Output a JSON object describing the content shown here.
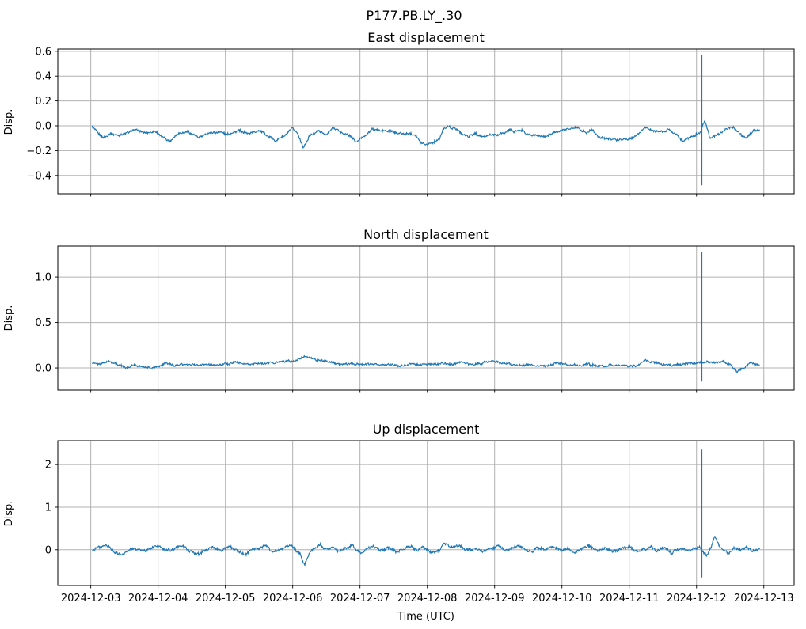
{
  "chart_data": {
    "type": "line",
    "title": "P177.PB.LY_.30",
    "xlabel": "Time (UTC)",
    "legend": "none",
    "grid": true,
    "line_color": "#1f77b4",
    "grid_color": "#b0b0b0",
    "axis_color": "#000000",
    "x_tick_labels": [
      "2024-12-03",
      "2024-12-04",
      "2024-12-05",
      "2024-12-06",
      "2024-12-07",
      "2024-12-08",
      "2024-12-09",
      "2024-12-10",
      "2024-12-11",
      "2024-12-12",
      "2024-12-13"
    ],
    "x_tick_positions_days": [
      0,
      1,
      2,
      3,
      4,
      5,
      6,
      7,
      8,
      9,
      10
    ],
    "x_range_days": [
      -0.49,
      10.45
    ],
    "data_span_days": [
      0.02,
      9.94
    ],
    "subplots": [
      {
        "name": "east",
        "title": "East displacement",
        "ylabel": "Disp.",
        "ylim": [
          -0.548,
          0.618
        ],
        "yticks": [
          -0.4,
          -0.2,
          0.0,
          0.2,
          0.4,
          0.6
        ],
        "ytick_labels": [
          "−0.4",
          "−0.2",
          "0.0",
          "0.2",
          "0.4",
          "0.6"
        ],
        "noise_amp": 0.013,
        "spike": {
          "day": 9.08,
          "high": 0.57,
          "low": -0.48
        },
        "anchors": [
          [
            0.02,
            0.0
          ],
          [
            0.08,
            -0.04
          ],
          [
            0.18,
            -0.1
          ],
          [
            0.3,
            -0.06
          ],
          [
            0.42,
            -0.08
          ],
          [
            0.55,
            -0.05
          ],
          [
            0.68,
            -0.03
          ],
          [
            0.8,
            -0.06
          ],
          [
            0.95,
            -0.04
          ],
          [
            1.06,
            -0.09
          ],
          [
            1.18,
            -0.12
          ],
          [
            1.3,
            -0.06
          ],
          [
            1.45,
            -0.05
          ],
          [
            1.6,
            -0.1
          ],
          [
            1.75,
            -0.06
          ],
          [
            1.9,
            -0.05
          ],
          [
            2.05,
            -0.07
          ],
          [
            2.2,
            -0.04
          ],
          [
            2.35,
            -0.06
          ],
          [
            2.5,
            -0.04
          ],
          [
            2.62,
            -0.08
          ],
          [
            2.75,
            -0.12
          ],
          [
            2.88,
            -0.08
          ],
          [
            3.0,
            -0.02
          ],
          [
            3.08,
            -0.07
          ],
          [
            3.16,
            -0.18
          ],
          [
            3.25,
            -0.08
          ],
          [
            3.38,
            -0.04
          ],
          [
            3.5,
            -0.07
          ],
          [
            3.6,
            -0.02
          ],
          [
            3.72,
            -0.05
          ],
          [
            3.85,
            -0.08
          ],
          [
            3.95,
            -0.13
          ],
          [
            4.05,
            -0.09
          ],
          [
            4.18,
            -0.03
          ],
          [
            4.32,
            -0.04
          ],
          [
            4.45,
            -0.04
          ],
          [
            4.58,
            -0.06
          ],
          [
            4.7,
            -0.06
          ],
          [
            4.82,
            -0.07
          ],
          [
            4.9,
            -0.13
          ],
          [
            5.0,
            -0.15
          ],
          [
            5.1,
            -0.13
          ],
          [
            5.18,
            -0.11
          ],
          [
            5.24,
            -0.02
          ],
          [
            5.32,
            -0.01
          ],
          [
            5.42,
            -0.02
          ],
          [
            5.52,
            -0.07
          ],
          [
            5.62,
            -0.08
          ],
          [
            5.72,
            -0.06
          ],
          [
            5.82,
            -0.09
          ],
          [
            5.94,
            -0.07
          ],
          [
            6.02,
            -0.08
          ],
          [
            6.12,
            -0.06
          ],
          [
            6.24,
            -0.03
          ],
          [
            6.29,
            -0.05
          ],
          [
            6.35,
            -0.04
          ],
          [
            6.41,
            -0.04
          ],
          [
            6.47,
            -0.06
          ],
          [
            6.53,
            -0.07
          ],
          [
            6.65,
            -0.08
          ],
          [
            6.76,
            -0.09
          ],
          [
            6.88,
            -0.05
          ],
          [
            7.0,
            -0.04
          ],
          [
            7.06,
            -0.03
          ],
          [
            7.24,
            -0.01
          ],
          [
            7.35,
            -0.06
          ],
          [
            7.45,
            -0.02
          ],
          [
            7.53,
            -0.09
          ],
          [
            7.65,
            -0.1
          ],
          [
            7.8,
            -0.11
          ],
          [
            7.94,
            -0.11
          ],
          [
            8.06,
            -0.1
          ],
          [
            8.24,
            -0.01
          ],
          [
            8.35,
            -0.04
          ],
          [
            8.51,
            -0.05
          ],
          [
            8.59,
            -0.03
          ],
          [
            8.71,
            -0.07
          ],
          [
            8.79,
            -0.12
          ],
          [
            8.88,
            -0.1
          ],
          [
            9.0,
            -0.07
          ],
          [
            9.06,
            -0.05
          ],
          [
            9.12,
            0.04
          ],
          [
            9.2,
            -0.1
          ],
          [
            9.3,
            -0.08
          ],
          [
            9.42,
            -0.03
          ],
          [
            9.55,
            -0.01
          ],
          [
            9.65,
            -0.07
          ],
          [
            9.75,
            -0.1
          ],
          [
            9.85,
            -0.03
          ],
          [
            9.94,
            -0.04
          ]
        ]
      },
      {
        "name": "north",
        "title": "North displacement",
        "ylabel": "Disp.",
        "ylim": [
          -0.243,
          1.34
        ],
        "yticks": [
          0.0,
          0.5,
          1.0
        ],
        "ytick_labels": [
          "0.0",
          "0.5",
          "1.0"
        ],
        "noise_amp": 0.017,
        "spike": {
          "day": 9.08,
          "high": 1.27,
          "low": -0.15
        },
        "anchors": [
          [
            0.02,
            0.06
          ],
          [
            0.12,
            0.04
          ],
          [
            0.25,
            0.07
          ],
          [
            0.38,
            0.05
          ],
          [
            0.52,
            0.0
          ],
          [
            0.62,
            0.03
          ],
          [
            0.75,
            0.02
          ],
          [
            0.88,
            0.0
          ],
          [
            1.0,
            0.01
          ],
          [
            1.12,
            0.05
          ],
          [
            1.25,
            0.03
          ],
          [
            1.4,
            0.04
          ],
          [
            1.55,
            0.03
          ],
          [
            1.7,
            0.04
          ],
          [
            1.85,
            0.03
          ],
          [
            2.0,
            0.04
          ],
          [
            2.15,
            0.06
          ],
          [
            2.3,
            0.04
          ],
          [
            2.45,
            0.05
          ],
          [
            2.6,
            0.05
          ],
          [
            2.75,
            0.06
          ],
          [
            2.9,
            0.07
          ],
          [
            3.05,
            0.08
          ],
          [
            3.18,
            0.13
          ],
          [
            3.3,
            0.1
          ],
          [
            3.42,
            0.08
          ],
          [
            3.55,
            0.06
          ],
          [
            3.7,
            0.04
          ],
          [
            3.85,
            0.05
          ],
          [
            4.0,
            0.04
          ],
          [
            4.15,
            0.05
          ],
          [
            4.3,
            0.03
          ],
          [
            4.45,
            0.04
          ],
          [
            4.6,
            0.02
          ],
          [
            4.75,
            0.04
          ],
          [
            4.9,
            0.03
          ],
          [
            5.05,
            0.04
          ],
          [
            5.2,
            0.05
          ],
          [
            5.35,
            0.04
          ],
          [
            5.5,
            0.06
          ],
          [
            5.65,
            0.04
          ],
          [
            5.8,
            0.05
          ],
          [
            5.95,
            0.08
          ],
          [
            6.05,
            0.06
          ],
          [
            6.2,
            0.05
          ],
          [
            6.35,
            0.03
          ],
          [
            6.5,
            0.04
          ],
          [
            6.65,
            0.02
          ],
          [
            6.8,
            0.03
          ],
          [
            6.95,
            0.06
          ],
          [
            7.1,
            0.04
          ],
          [
            7.25,
            0.03
          ],
          [
            7.4,
            0.04
          ],
          [
            7.55,
            0.02
          ],
          [
            7.7,
            0.03
          ],
          [
            7.85,
            0.03
          ],
          [
            8.0,
            0.02
          ],
          [
            8.12,
            0.03
          ],
          [
            8.24,
            0.08
          ],
          [
            8.35,
            0.06
          ],
          [
            8.5,
            0.04
          ],
          [
            8.65,
            0.03
          ],
          [
            8.8,
            0.04
          ],
          [
            8.95,
            0.05
          ],
          [
            9.06,
            0.06
          ],
          [
            9.12,
            0.07
          ],
          [
            9.25,
            0.06
          ],
          [
            9.4,
            0.07
          ],
          [
            9.52,
            0.02
          ],
          [
            9.6,
            -0.04
          ],
          [
            9.7,
            0.0
          ],
          [
            9.8,
            0.06
          ],
          [
            9.88,
            0.04
          ],
          [
            9.94,
            0.03
          ]
        ]
      },
      {
        "name": "up",
        "title": "Up displacement",
        "ylabel": "Disp.",
        "ylim": [
          -0.84,
          2.56
        ],
        "yticks": [
          0,
          1,
          2
        ],
        "ytick_labels": [
          "0",
          "1",
          "2"
        ],
        "noise_amp": 0.047,
        "spike": {
          "day": 9.08,
          "high": 2.35,
          "low": -0.65
        },
        "anchors": [
          [
            0.02,
            -0.02
          ],
          [
            0.12,
            0.08
          ],
          [
            0.24,
            0.1
          ],
          [
            0.35,
            -0.08
          ],
          [
            0.47,
            -0.12
          ],
          [
            0.59,
            0.05
          ],
          [
            0.71,
            0.0
          ],
          [
            0.82,
            -0.03
          ],
          [
            0.94,
            0.06
          ],
          [
            1.0,
            0.1
          ],
          [
            1.12,
            -0.02
          ],
          [
            1.24,
            0.02
          ],
          [
            1.35,
            0.1
          ],
          [
            1.47,
            -0.05
          ],
          [
            1.59,
            -0.1
          ],
          [
            1.71,
            0.0
          ],
          [
            1.82,
            0.05
          ],
          [
            1.94,
            -0.02
          ],
          [
            2.06,
            0.08
          ],
          [
            2.18,
            -0.02
          ],
          [
            2.29,
            -0.12
          ],
          [
            2.41,
            0.0
          ],
          [
            2.53,
            0.05
          ],
          [
            2.59,
            0.1
          ],
          [
            2.71,
            -0.05
          ],
          [
            2.82,
            0.02
          ],
          [
            2.94,
            0.1
          ],
          [
            3.0,
            0.05
          ],
          [
            3.09,
            -0.05
          ],
          [
            3.18,
            -0.35
          ],
          [
            3.26,
            -0.05
          ],
          [
            3.35,
            0.05
          ],
          [
            3.41,
            0.12
          ],
          [
            3.49,
            0.0
          ],
          [
            3.59,
            0.06
          ],
          [
            3.68,
            -0.05
          ],
          [
            3.76,
            0.02
          ],
          [
            3.88,
            0.1
          ],
          [
            3.94,
            0.02
          ],
          [
            4.04,
            -0.08
          ],
          [
            4.12,
            0.05
          ],
          [
            4.2,
            0.1
          ],
          [
            4.29,
            -0.02
          ],
          [
            4.41,
            0.05
          ],
          [
            4.53,
            -0.05
          ],
          [
            4.65,
            0.02
          ],
          [
            4.76,
            0.1
          ],
          [
            4.86,
            -0.02
          ],
          [
            4.94,
            0.05
          ],
          [
            5.06,
            -0.08
          ],
          [
            5.18,
            0.0
          ],
          [
            5.26,
            0.15
          ],
          [
            5.35,
            0.05
          ],
          [
            5.47,
            0.1
          ],
          [
            5.59,
            -0.02
          ],
          [
            5.71,
            0.05
          ],
          [
            5.82,
            -0.05
          ],
          [
            5.94,
            0.02
          ],
          [
            6.06,
            0.08
          ],
          [
            6.18,
            -0.02
          ],
          [
            6.29,
            0.05
          ],
          [
            6.35,
            0.12
          ],
          [
            6.44,
            0.0
          ],
          [
            6.53,
            -0.05
          ],
          [
            6.65,
            0.05
          ],
          [
            6.76,
            0.0
          ],
          [
            6.88,
            0.08
          ],
          [
            7.0,
            -0.02
          ],
          [
            7.09,
            0.05
          ],
          [
            7.18,
            -0.08
          ],
          [
            7.29,
            0.02
          ],
          [
            7.41,
            0.1
          ],
          [
            7.53,
            -0.02
          ],
          [
            7.65,
            0.05
          ],
          [
            7.76,
            -0.05
          ],
          [
            7.88,
            0.02
          ],
          [
            8.0,
            0.08
          ],
          [
            8.12,
            -0.05
          ],
          [
            8.24,
            0.02
          ],
          [
            8.32,
            0.1
          ],
          [
            8.41,
            -0.02
          ],
          [
            8.53,
            0.05
          ],
          [
            8.62,
            -0.08
          ],
          [
            8.71,
            0.0
          ],
          [
            8.79,
            0.05
          ],
          [
            8.88,
            -0.02
          ],
          [
            8.97,
            0.03
          ],
          [
            9.05,
            0.05
          ],
          [
            9.12,
            -0.1
          ],
          [
            9.16,
            -0.12
          ],
          [
            9.22,
            0.1
          ],
          [
            9.27,
            0.3
          ],
          [
            9.32,
            0.15
          ],
          [
            9.39,
            0.0
          ],
          [
            9.48,
            -0.1
          ],
          [
            9.56,
            0.05
          ],
          [
            9.65,
            0.0
          ],
          [
            9.74,
            0.05
          ],
          [
            9.82,
            -0.02
          ],
          [
            9.94,
            0.02
          ]
        ]
      }
    ]
  }
}
